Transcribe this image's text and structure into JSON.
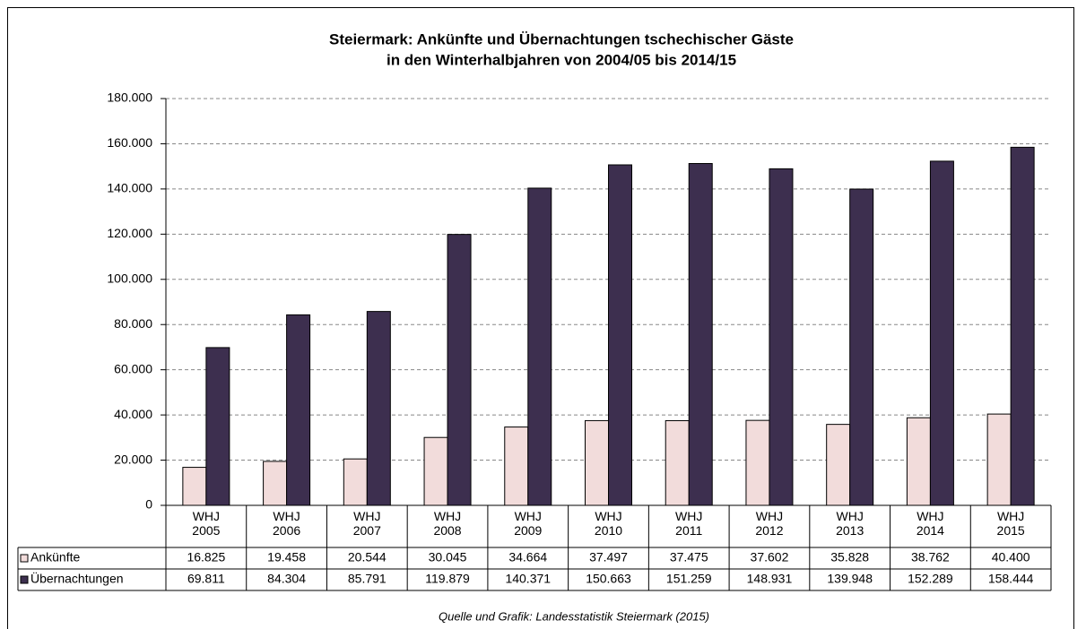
{
  "chart_data": {
    "type": "bar",
    "title": "Steiermark: Ankünfte und Übernachtungen tschechischer Gäste",
    "subtitle": "in den Winterhalbjahren von 2004/05 bis 2014/15",
    "source": "Quelle und Grafik: Landesstatistik Steiermark (2015)",
    "categories": [
      "WHJ 2005",
      "WHJ 2006",
      "WHJ 2007",
      "WHJ 2008",
      "WHJ 2009",
      "WHJ 2010",
      "WHJ 2011",
      "WHJ 2012",
      "WHJ 2013",
      "WHJ 2014",
      "WHJ 2015"
    ],
    "series": [
      {
        "name": "Ankünfte",
        "color": "#f2dcdb",
        "values": [
          16825,
          19458,
          20544,
          30045,
          34664,
          37497,
          37475,
          37602,
          35828,
          38762,
          40400
        ],
        "value_labels": [
          "16.825",
          "19.458",
          "20.544",
          "30.045",
          "34.664",
          "37.497",
          "37.475",
          "37.602",
          "35.828",
          "38.762",
          "40.400"
        ]
      },
      {
        "name": "Übernachtungen",
        "color": "#3d2f4f",
        "values": [
          69811,
          84304,
          85791,
          119879,
          140371,
          150663,
          151259,
          148931,
          139948,
          152289,
          158444
        ],
        "value_labels": [
          "69.811",
          "84.304",
          "85.791",
          "119.879",
          "140.371",
          "150.663",
          "151.259",
          "148.931",
          "139.948",
          "152.289",
          "158.444"
        ]
      }
    ],
    "ylim": [
      0,
      180000
    ],
    "yticks": [
      0,
      {
        "value": 20000,
        "label": "20.000"
      },
      {
        "value": 40000,
        "label": "40.000"
      },
      {
        "value": 60000,
        "label": "60.000"
      },
      {
        "value": 80000,
        "label": "80.000"
      },
      {
        "value": 100000,
        "label": "100.000"
      },
      {
        "value": 120000,
        "label": "120.000"
      },
      {
        "value": 140000,
        "label": "140.000"
      },
      {
        "value": 160000,
        "label": "160.000"
      },
      {
        "value": 180000,
        "label": "180.000"
      }
    ],
    "grid": true
  }
}
